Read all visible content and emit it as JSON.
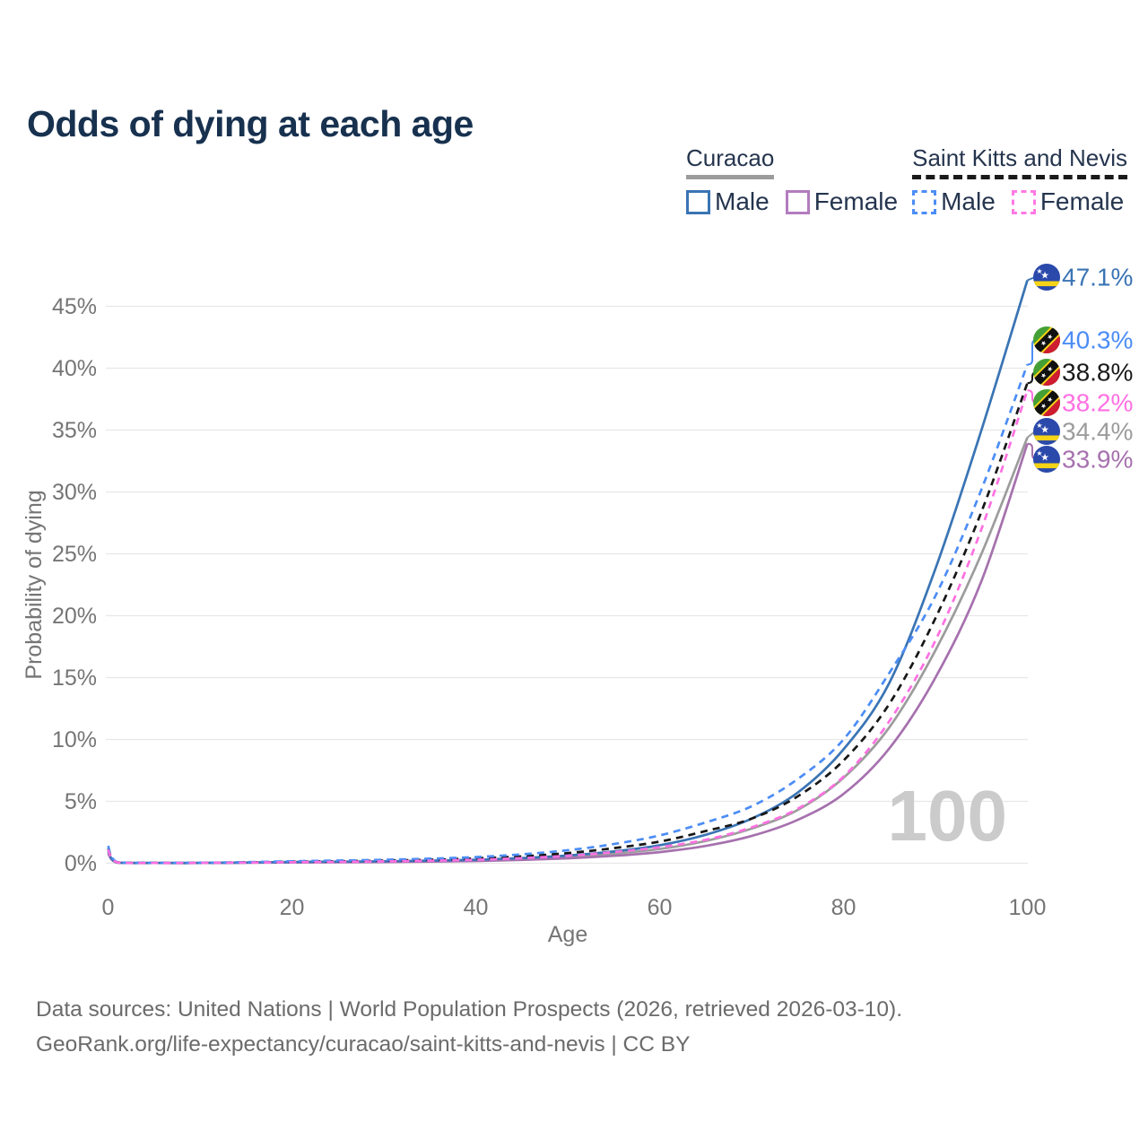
{
  "title": "Odds of dying at each age",
  "legend": {
    "groups": [
      {
        "id": "curacao",
        "label": "Curacao",
        "underline_style": "solid",
        "underline_color": "#9c9c9c",
        "items": [
          {
            "label": "Male",
            "color": "#3a74b4",
            "dash": false
          },
          {
            "label": "Female",
            "color": "#b37cbe",
            "dash": false
          }
        ]
      },
      {
        "id": "saint-kitts-and-nevis",
        "label": "Saint Kitts and Nevis",
        "underline_style": "dashed",
        "underline_color": "#1a1a1a",
        "items": [
          {
            "label": "Male",
            "color": "#4c8df5",
            "dash": true
          },
          {
            "label": "Female",
            "color": "#ff7ae4",
            "dash": true
          }
        ]
      }
    ]
  },
  "chart_data": {
    "type": "line",
    "title": "Odds of dying at each age",
    "xlabel": "Age",
    "ylabel": "Probability of dying",
    "xlim": [
      0,
      100
    ],
    "ylim": [
      0,
      47.5
    ],
    "grid": true,
    "watermark": "100",
    "x_ticks": [
      {
        "label": "0",
        "value": 0
      },
      {
        "label": "20",
        "value": 20
      },
      {
        "label": "40",
        "value": 40
      },
      {
        "label": "60",
        "value": 60
      },
      {
        "label": "80",
        "value": 80
      },
      {
        "label": "100",
        "value": 100
      }
    ],
    "y_ticks": [
      {
        "label": "0%",
        "value": 0
      },
      {
        "label": "5%",
        "value": 5
      },
      {
        "label": "10%",
        "value": 10
      },
      {
        "label": "15%",
        "value": 15
      },
      {
        "label": "20%",
        "value": 20
      },
      {
        "label": "25%",
        "value": 25
      },
      {
        "label": "30%",
        "value": 30
      },
      {
        "label": "35%",
        "value": 35
      },
      {
        "label": "40%",
        "value": 40
      },
      {
        "label": "45%",
        "value": 45
      }
    ],
    "ages": [
      0,
      1,
      5,
      10,
      15,
      20,
      25,
      30,
      35,
      40,
      45,
      50,
      55,
      60,
      65,
      70,
      75,
      80,
      85,
      90,
      95,
      100
    ],
    "series": [
      {
        "id": "curacao-male",
        "name": "Curacao Male",
        "country": "Curacao",
        "sex": "Male",
        "color": "#3a74b4",
        "dash": "solid",
        "flag": "curacao",
        "end_label": "47.1%",
        "end_value": 47.1,
        "label_color": "#3a74b4",
        "values": [
          1.0,
          0.06,
          0.02,
          0.02,
          0.06,
          0.1,
          0.13,
          0.16,
          0.21,
          0.28,
          0.42,
          0.62,
          0.95,
          1.45,
          2.3,
          3.6,
          5.7,
          9.2,
          14.6,
          23.8,
          35.0,
          47.1
        ]
      },
      {
        "id": "skn-male",
        "name": "Saint Kitts and Nevis Male",
        "country": "Saint Kitts and Nevis",
        "sex": "Male",
        "color": "#4c8df5",
        "dash": "dashed",
        "flag": "skn",
        "end_label": "40.3%",
        "end_value": 40.3,
        "label_color": "#4c8df5",
        "values": [
          1.4,
          0.09,
          0.03,
          0.04,
          0.09,
          0.16,
          0.22,
          0.28,
          0.37,
          0.5,
          0.72,
          1.05,
          1.55,
          2.25,
          3.3,
          4.6,
          6.8,
          10.0,
          15.4,
          21.6,
          30.2,
          40.3
        ]
      },
      {
        "id": "skn-total",
        "name": "Saint Kitts and Nevis",
        "country": "Saint Kitts and Nevis",
        "sex": "Both",
        "color": "#171717",
        "dash": "dashed",
        "flag": "skn",
        "end_label": "38.8%",
        "end_value": 38.8,
        "label_color": "#1a1a1a",
        "values": [
          1.2,
          0.08,
          0.03,
          0.03,
          0.07,
          0.12,
          0.16,
          0.21,
          0.28,
          0.39,
          0.56,
          0.82,
          1.22,
          1.75,
          2.6,
          3.6,
          5.4,
          8.3,
          12.9,
          19.8,
          28.4,
          38.8
        ]
      },
      {
        "id": "skn-female",
        "name": "Saint Kitts and Nevis Female",
        "country": "Saint Kitts and Nevis",
        "sex": "Female",
        "color": "#ff70e2",
        "dash": "dashed",
        "flag": "skn",
        "end_label": "38.2%",
        "end_value": 38.2,
        "label_color": "#ff70e2",
        "values": [
          1.1,
          0.07,
          0.02,
          0.03,
          0.05,
          0.09,
          0.11,
          0.15,
          0.2,
          0.28,
          0.41,
          0.6,
          0.9,
          1.3,
          1.9,
          2.9,
          4.4,
          7.0,
          11.5,
          18.0,
          27.0,
          38.2
        ]
      },
      {
        "id": "curacao-total",
        "name": "Curacao",
        "country": "Curacao",
        "sex": "Both",
        "color": "#9c9c9c",
        "dash": "solid",
        "flag": "curacao",
        "end_label": "34.4%",
        "end_value": 34.4,
        "label_color": "#9c9c9c",
        "values": [
          0.9,
          0.05,
          0.02,
          0.02,
          0.05,
          0.08,
          0.1,
          0.13,
          0.17,
          0.23,
          0.35,
          0.52,
          0.78,
          1.15,
          1.8,
          2.8,
          4.3,
          6.9,
          11.0,
          17.2,
          25.0,
          34.4
        ]
      },
      {
        "id": "curacao-female",
        "name": "Curacao Female",
        "country": "Curacao",
        "sex": "Female",
        "color": "#a671ae",
        "dash": "solid",
        "flag": "curacao",
        "end_label": "33.9%",
        "end_value": 33.9,
        "label_color": "#a671ae",
        "values": [
          0.8,
          0.05,
          0.02,
          0.02,
          0.04,
          0.06,
          0.08,
          0.1,
          0.13,
          0.18,
          0.27,
          0.4,
          0.6,
          0.9,
          1.4,
          2.2,
          3.5,
          5.6,
          9.3,
          15.0,
          22.8,
          33.9
        ]
      }
    ]
  },
  "footer": {
    "line1": "Data sources: United Nations | World Population Prospects (2026, retrieved 2026-03-10).",
    "line2": "GeoRank.org/life-expectancy/curacao/saint-kitts-and-nevis | CC BY"
  }
}
